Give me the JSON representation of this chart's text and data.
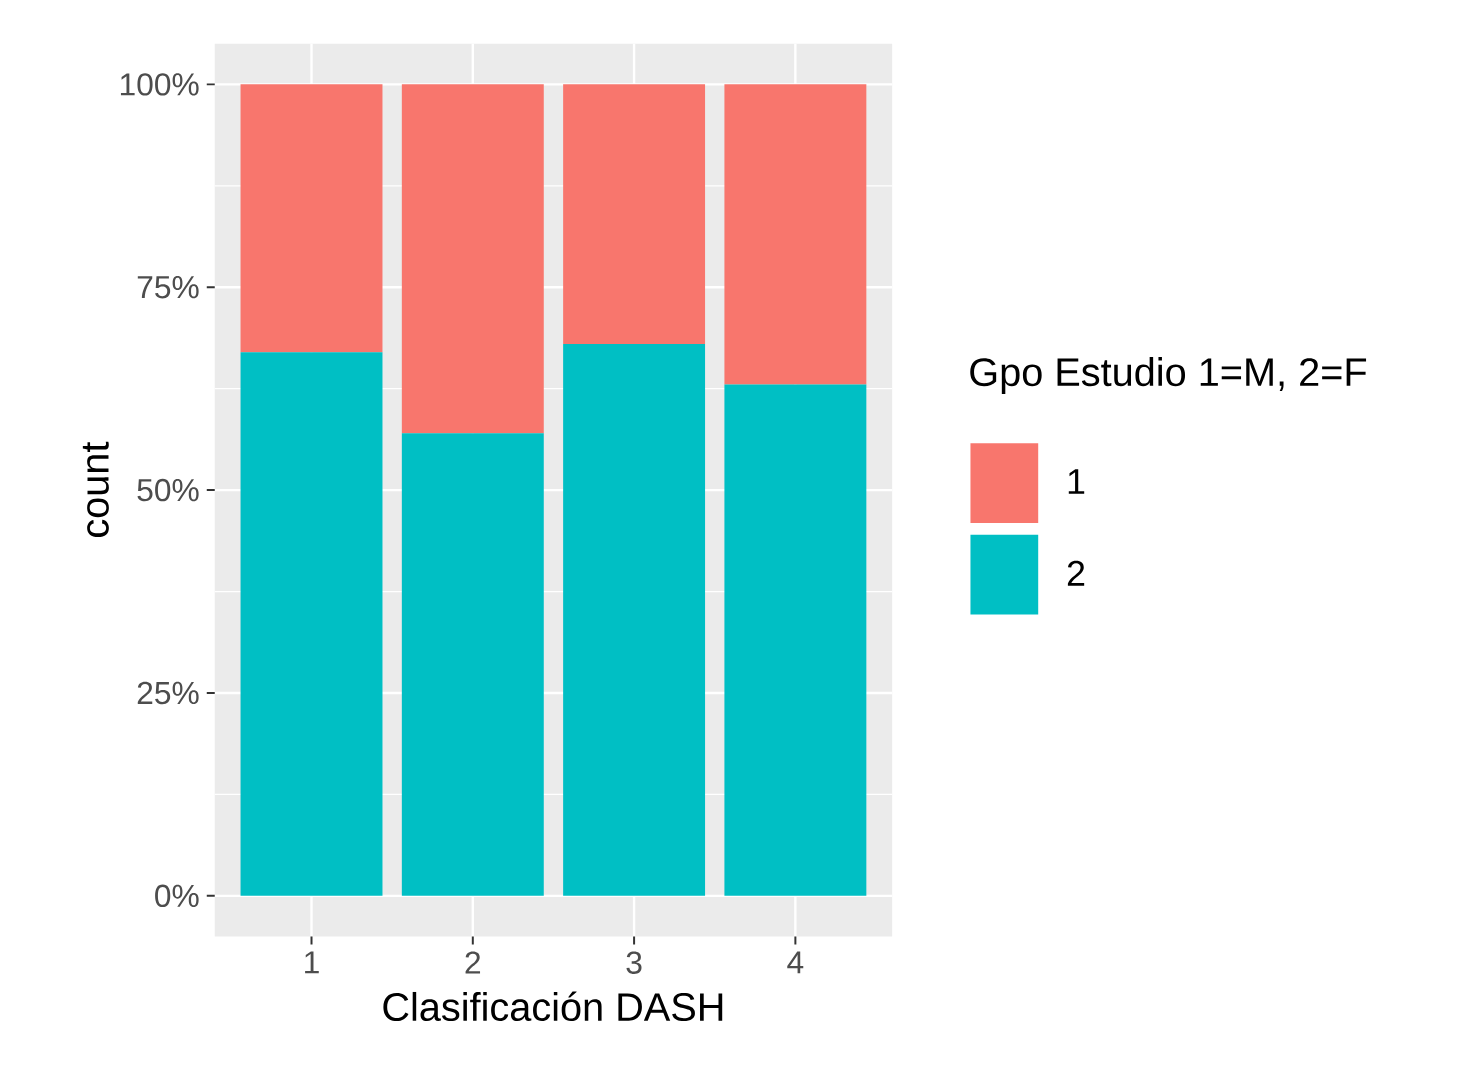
{
  "chart_data": {
    "type": "bar",
    "stacked": true,
    "xlabel": "Clasificación DASH",
    "ylabel": "count",
    "legend_title": "Gpo Estudio 1=M, 2=F",
    "categories": [
      "1",
      "2",
      "3",
      "4"
    ],
    "series": [
      {
        "name": "2",
        "color": "#00bfc4",
        "values": [
          67,
          57,
          68,
          63
        ]
      },
      {
        "name": "1",
        "color": "#f8766d",
        "values": [
          33,
          43,
          32,
          37
        ]
      }
    ],
    "ylim": [
      -5,
      105
    ],
    "yticks": [
      {
        "value": 0,
        "label": "0%"
      },
      {
        "value": 25,
        "label": "25%"
      },
      {
        "value": 50,
        "label": "50%"
      },
      {
        "value": 75,
        "label": "75%"
      },
      {
        "value": 100,
        "label": "100%"
      }
    ],
    "grid": true,
    "legend": "right"
  }
}
